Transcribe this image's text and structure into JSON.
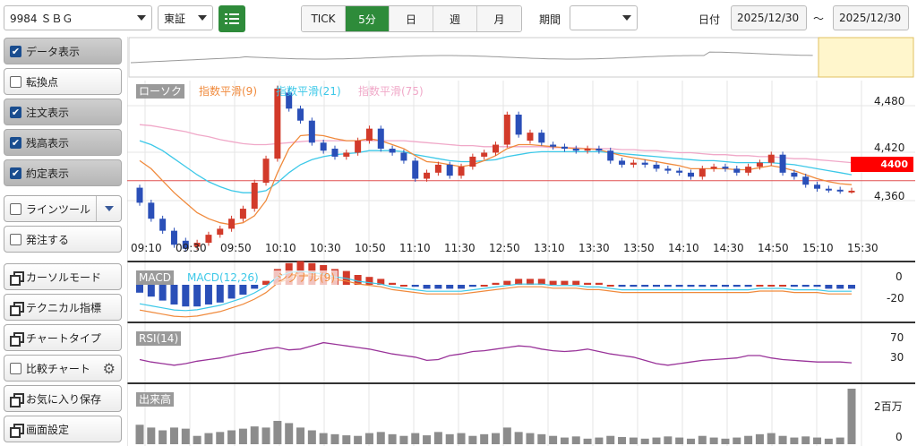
{
  "toolbar": {
    "symbol": "9984 ＳＢＧ",
    "market": "東証",
    "intervals": [
      {
        "label": "TICK",
        "active": false
      },
      {
        "label": "5分",
        "active": true
      },
      {
        "label": "日",
        "active": false
      },
      {
        "label": "週",
        "active": false
      },
      {
        "label": "月",
        "active": false
      }
    ],
    "period_label": "期間",
    "period_value": "",
    "date_label": "日付",
    "date_from": "2025/12/30",
    "date_sep": "～",
    "date_to": "2025/12/30"
  },
  "sidebar": {
    "items": [
      {
        "label": "データ表示",
        "checked": true,
        "kind": "check"
      },
      {
        "label": "転換点",
        "checked": false,
        "kind": "check"
      },
      {
        "label": "注文表示",
        "checked": true,
        "kind": "check"
      },
      {
        "label": "残高表示",
        "checked": true,
        "kind": "check"
      },
      {
        "label": "約定表示",
        "checked": true,
        "kind": "check"
      },
      {
        "label": "ラインツール",
        "checked": false,
        "kind": "check"
      },
      {
        "label": "発注する",
        "checked": false,
        "kind": "check"
      },
      {
        "label": "カーソルモード",
        "kind": "window"
      },
      {
        "label": "テクニカル指標",
        "kind": "window"
      },
      {
        "label": "チャートタイプ",
        "kind": "window"
      },
      {
        "label": "比較チャート",
        "checked": false,
        "kind": "check"
      },
      {
        "label": "お気に入り保存",
        "kind": "window"
      },
      {
        "label": "画面設定",
        "kind": "window"
      }
    ]
  },
  "main_legend": [
    {
      "label": "ローソク",
      "color": "#ffffff",
      "bg": "#9a9a9a"
    },
    {
      "label": "指数平滑(9)",
      "color": "#f08a3c",
      "bg": "#ffffff"
    },
    {
      "label": "指数平滑(21)",
      "color": "#3cc8e8",
      "bg": "#ffffff"
    },
    {
      "label": "指数平滑(75)",
      "color": "#f0a8c8",
      "bg": "#ffffff"
    }
  ],
  "price_axis": [
    "4,480",
    "4,420",
    "4,360"
  ],
  "price_tag": "4400",
  "time_axis": [
    "09:10",
    "09:30",
    "09:50",
    "10:10",
    "10:30",
    "10:50",
    "11:10",
    "11:30",
    "12:50",
    "13:10",
    "13:30",
    "13:50",
    "14:10",
    "14:30",
    "14:50",
    "15:10",
    "15:30"
  ],
  "macd": {
    "label": "MACD",
    "l1": "MACD(12,26)",
    "l2": "シグナル(9)",
    "axis": [
      "0",
      "-20"
    ]
  },
  "rsi": {
    "label": "RSI(14)",
    "axis": [
      "70",
      "30"
    ]
  },
  "volume": {
    "label": "出来高",
    "axis": [
      "2百万",
      "0"
    ]
  },
  "chart_data": {
    "type": "candlestick",
    "candles": [
      [
        4393,
        4378
      ],
      [
        4378,
        4362
      ],
      [
        4362,
        4350
      ],
      [
        4350,
        4336
      ],
      [
        4340,
        4332
      ],
      [
        4334,
        4338
      ],
      [
        4338,
        4346
      ],
      [
        4346,
        4352
      ],
      [
        4352,
        4362
      ],
      [
        4362,
        4372
      ],
      [
        4372,
        4398
      ],
      [
        4398,
        4422
      ],
      [
        4422,
        4492
      ],
      [
        4488,
        4472
      ],
      [
        4472,
        4460
      ],
      [
        4460,
        4438
      ],
      [
        4438,
        4430
      ],
      [
        4432,
        4424
      ],
      [
        4424,
        4428
      ],
      [
        4428,
        4440
      ],
      [
        4440,
        4452
      ],
      [
        4452,
        4432
      ],
      [
        4432,
        4428
      ],
      [
        4428,
        4420
      ],
      [
        4420,
        4402
      ],
      [
        4402,
        4408
      ],
      [
        4408,
        4416
      ],
      [
        4416,
        4405
      ],
      [
        4405,
        4414
      ],
      [
        4414,
        4424
      ],
      [
        4424,
        4428
      ],
      [
        4428,
        4436
      ],
      [
        4436,
        4466
      ],
      [
        4466,
        4446
      ],
      [
        4440,
        4448
      ],
      [
        4448,
        4438
      ],
      [
        4436,
        4434
      ],
      [
        4434,
        4432
      ],
      [
        4432,
        4430
      ],
      [
        4430,
        4432
      ],
      [
        4432,
        4430
      ],
      [
        4430,
        4420
      ],
      [
        4420,
        4416
      ],
      [
        4416,
        4418
      ],
      [
        4418,
        4416
      ],
      [
        4416,
        4412
      ],
      [
        4412,
        4410
      ],
      [
        4410,
        4408
      ],
      [
        4408,
        4404
      ],
      [
        4404,
        4412
      ],
      [
        4412,
        4414
      ],
      [
        4414,
        4412
      ],
      [
        4412,
        4408
      ],
      [
        4408,
        4414
      ],
      [
        4414,
        4418
      ],
      [
        4418,
        4426
      ],
      [
        4426,
        4408
      ],
      [
        4408,
        4404
      ],
      [
        4404,
        4396
      ],
      [
        4396,
        4392
      ],
      [
        4392,
        4391
      ],
      [
        4391,
        4390
      ],
      [
        4390,
        4390
      ]
    ],
    "ema9": [
      4420,
      4412,
      4400,
      4388,
      4378,
      4368,
      4362,
      4358,
      4356,
      4358,
      4365,
      4380,
      4408,
      4432,
      4445,
      4446,
      4445,
      4442,
      4440,
      4440,
      4442,
      4440,
      4436,
      4432,
      4425,
      4419,
      4418,
      4416,
      4414,
      4416,
      4420,
      4425,
      4432,
      4436,
      4436,
      4435,
      4434,
      4433,
      4432,
      4432,
      4431,
      4428,
      4425,
      4423,
      4421,
      4419,
      4417,
      4415,
      4412,
      4412,
      4412,
      4412,
      4411,
      4411,
      4413,
      4415,
      4413,
      4410,
      4406,
      4402,
      4399,
      4397,
      4396
    ],
    "ema21": [
      4440,
      4436,
      4430,
      4422,
      4414,
      4406,
      4399,
      4394,
      4390,
      4388,
      4388,
      4390,
      4398,
      4408,
      4416,
      4421,
      4424,
      4426,
      4427,
      4428,
      4430,
      4430,
      4430,
      4429,
      4426,
      4424,
      4422,
      4420,
      4419,
      4419,
      4420,
      4421,
      4424,
      4426,
      4428,
      4429,
      4429,
      4429,
      4429,
      4429,
      4429,
      4428,
      4427,
      4426,
      4425,
      4424,
      4423,
      4422,
      4421,
      4420,
      4420,
      4419,
      4418,
      4418,
      4418,
      4418,
      4417,
      4416,
      4414,
      4412,
      4410,
      4408,
      4406
    ],
    "ema75": [
      4456,
      4455,
      4453,
      4451,
      4449,
      4446,
      4444,
      4441,
      4439,
      4437,
      4436,
      4436,
      4437,
      4438,
      4439,
      4440,
      4440,
      4440,
      4440,
      4440,
      4440,
      4440,
      4440,
      4440,
      4439,
      4438,
      4437,
      4436,
      4435,
      4435,
      4434,
      4434,
      4434,
      4434,
      4434,
      4434,
      4433,
      4433,
      4433,
      4432,
      4432,
      4432,
      4431,
      4431,
      4430,
      4430,
      4429,
      4428,
      4428,
      4427,
      4426,
      4426,
      4425,
      4425,
      4424,
      4424,
      4423,
      4422,
      4422,
      4421,
      4420,
      4419,
      4418
    ],
    "macd_hist": [
      -4,
      -6,
      -8,
      -10,
      -11,
      -11,
      -10,
      -9,
      -7,
      -5,
      -2,
      2,
      8,
      11,
      12,
      11,
      10,
      8,
      7,
      5,
      4,
      3,
      1,
      0,
      -1,
      -2,
      -2,
      -2,
      -2,
      -1,
      0,
      1,
      2,
      3,
      3,
      3,
      2,
      2,
      2,
      1,
      1,
      0,
      -1,
      -1,
      -1,
      -1,
      -1,
      -1,
      -1,
      -1,
      -1,
      -1,
      -1,
      -1,
      0,
      0,
      0,
      -1,
      -1,
      -1,
      -2,
      -2,
      -2
    ],
    "rsi": [
      45,
      42,
      40,
      38,
      40,
      43,
      45,
      47,
      50,
      53,
      55,
      58,
      60,
      57,
      58,
      62,
      66,
      64,
      62,
      60,
      58,
      55,
      52,
      50,
      48,
      44,
      45,
      50,
      52,
      55,
      56,
      58,
      60,
      62,
      61,
      58,
      56,
      55,
      56,
      58,
      55,
      52,
      50,
      48,
      44,
      40,
      38,
      40,
      42,
      44,
      45,
      46,
      47,
      50,
      50,
      47,
      45,
      44,
      43,
      42,
      42,
      42,
      41
    ],
    "volume": [
      0.35,
      0.3,
      0.25,
      0.3,
      0.28,
      0.15,
      0.2,
      0.22,
      0.25,
      0.28,
      0.32,
      0.3,
      0.42,
      0.38,
      0.3,
      0.25,
      0.2,
      0.18,
      0.16,
      0.15,
      0.2,
      0.22,
      0.18,
      0.15,
      0.2,
      0.16,
      0.22,
      0.18,
      0.2,
      0.15,
      0.18,
      0.2,
      0.3,
      0.22,
      0.2,
      0.18,
      0.15,
      0.12,
      0.14,
      0.1,
      0.12,
      0.15,
      0.13,
      0.12,
      0.1,
      0.12,
      0.14,
      0.12,
      0.1,
      0.15,
      0.12,
      0.1,
      0.12,
      0.15,
      0.18,
      0.2,
      0.15,
      0.12,
      0.14,
      0.12,
      0.1,
      0.12,
      1.0
    ],
    "price_range": [
      4330,
      4500
    ],
    "colors": {
      "up": "#d23a2a",
      "down": "#2a4fb8",
      "tag": "#ff0000"
    }
  }
}
